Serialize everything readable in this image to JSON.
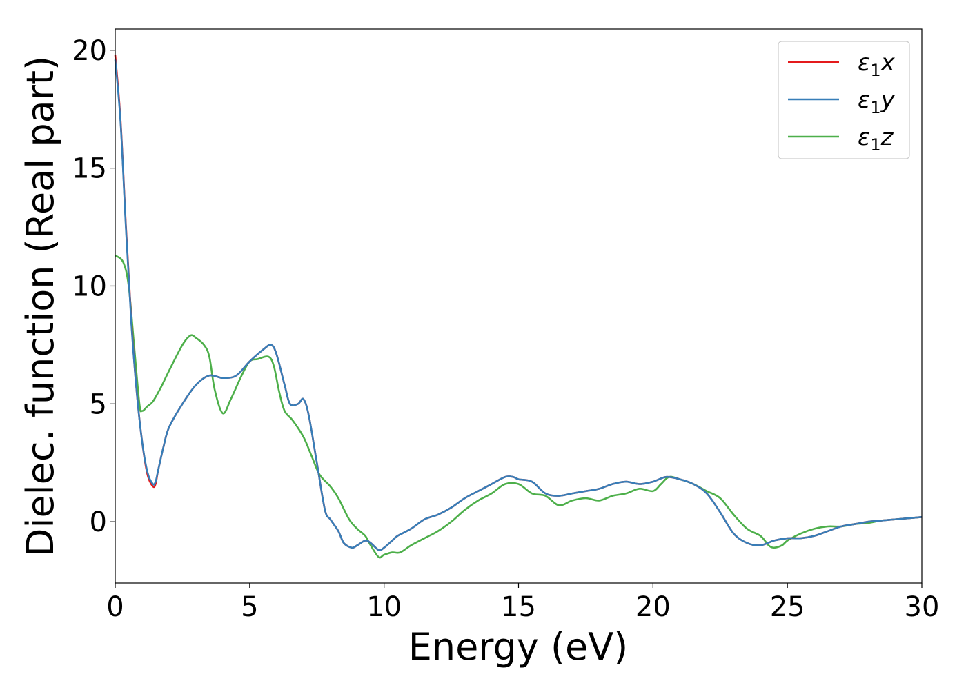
{
  "chart_data": {
    "type": "line",
    "xlabel": "Energy (eV)",
    "ylabel": "Dielec. function (Real part)",
    "xlim": [
      0,
      30
    ],
    "ylim": [
      -2.6,
      20.9
    ],
    "xticks": [
      0,
      5,
      10,
      15,
      20,
      25,
      30
    ],
    "yticks": [
      0,
      5,
      10,
      15,
      20
    ],
    "grid": false,
    "legend_position": "top-right",
    "series": [
      {
        "name": "ε1x",
        "legend_main": "ε",
        "legend_sub": "1",
        "legend_var": "x",
        "color": "#e41a1c",
        "x": [
          0,
          0.2,
          0.4,
          0.6,
          0.8,
          1.0,
          1.2,
          1.4,
          1.5,
          1.6,
          1.8,
          2.0,
          2.5,
          3.0,
          3.5,
          4.0,
          4.5,
          5.0,
          5.5,
          5.8,
          6.0,
          6.3,
          6.5,
          6.8,
          7.0,
          7.2,
          7.5,
          7.8,
          8.0,
          8.3,
          8.5,
          8.8,
          9.0,
          9.3,
          9.5,
          9.8,
          10.0,
          10.3,
          10.5,
          11.0,
          11.5,
          12.0,
          12.5,
          13.0,
          13.5,
          14.0,
          14.5,
          14.8,
          15.0,
          15.5,
          16.0,
          16.5,
          17.0,
          17.5,
          18.0,
          18.5,
          19.0,
          19.5,
          20.0,
          20.5,
          21.0,
          21.5,
          22.0,
          22.5,
          23.0,
          23.5,
          24.0,
          24.5,
          25.0,
          25.5,
          26.0,
          26.5,
          27.0,
          27.5,
          28.0,
          28.5,
          29.0,
          29.5,
          30.0
        ],
        "y": [
          19.8,
          17.0,
          12.5,
          8.5,
          5.5,
          3.4,
          2.0,
          1.5,
          1.6,
          2.2,
          3.2,
          4.0,
          5.0,
          5.8,
          6.2,
          6.1,
          6.2,
          6.8,
          7.3,
          7.5,
          7.1,
          5.8,
          5.0,
          5.0,
          5.2,
          4.5,
          2.5,
          0.5,
          0.1,
          -0.4,
          -0.9,
          -1.1,
          -1.0,
          -0.8,
          -0.9,
          -1.2,
          -1.1,
          -0.8,
          -0.6,
          -0.3,
          0.1,
          0.3,
          0.6,
          1.0,
          1.3,
          1.6,
          1.9,
          1.9,
          1.8,
          1.7,
          1.2,
          1.1,
          1.2,
          1.3,
          1.4,
          1.6,
          1.7,
          1.6,
          1.7,
          1.9,
          1.8,
          1.6,
          1.2,
          0.4,
          -0.5,
          -0.9,
          -1.0,
          -0.8,
          -0.7,
          -0.7,
          -0.6,
          -0.4,
          -0.2,
          -0.1,
          0.0,
          0.05,
          0.1,
          0.15,
          0.2
        ]
      },
      {
        "name": "ε1y",
        "legend_main": "ε",
        "legend_sub": "1",
        "legend_var": "y",
        "color": "#377eb8",
        "x": [
          0,
          0.2,
          0.4,
          0.6,
          0.8,
          1.0,
          1.2,
          1.4,
          1.5,
          1.6,
          1.8,
          2.0,
          2.5,
          3.0,
          3.5,
          4.0,
          4.5,
          5.0,
          5.5,
          5.8,
          6.0,
          6.3,
          6.5,
          6.8,
          7.0,
          7.2,
          7.5,
          7.8,
          8.0,
          8.3,
          8.5,
          8.8,
          9.0,
          9.3,
          9.5,
          9.8,
          10.0,
          10.3,
          10.5,
          11.0,
          11.5,
          12.0,
          12.5,
          13.0,
          13.5,
          14.0,
          14.5,
          14.8,
          15.0,
          15.5,
          16.0,
          16.5,
          17.0,
          17.5,
          18.0,
          18.5,
          19.0,
          19.5,
          20.0,
          20.5,
          21.0,
          21.5,
          22.0,
          22.5,
          23.0,
          23.5,
          24.0,
          24.5,
          25.0,
          25.5,
          26.0,
          26.5,
          27.0,
          27.5,
          28.0,
          28.5,
          29.0,
          29.5,
          30.0
        ],
        "y": [
          19.6,
          16.9,
          12.4,
          8.4,
          5.5,
          3.4,
          2.1,
          1.6,
          1.7,
          2.2,
          3.2,
          4.0,
          5.0,
          5.8,
          6.2,
          6.1,
          6.2,
          6.8,
          7.3,
          7.5,
          7.1,
          5.8,
          5.0,
          5.0,
          5.2,
          4.5,
          2.5,
          0.5,
          0.1,
          -0.4,
          -0.9,
          -1.1,
          -1.0,
          -0.8,
          -0.9,
          -1.2,
          -1.1,
          -0.8,
          -0.6,
          -0.3,
          0.1,
          0.3,
          0.6,
          1.0,
          1.3,
          1.6,
          1.9,
          1.9,
          1.8,
          1.7,
          1.2,
          1.1,
          1.2,
          1.3,
          1.4,
          1.6,
          1.7,
          1.6,
          1.7,
          1.9,
          1.8,
          1.6,
          1.2,
          0.4,
          -0.5,
          -0.9,
          -1.0,
          -0.8,
          -0.7,
          -0.7,
          -0.6,
          -0.4,
          -0.2,
          -0.1,
          0.0,
          0.05,
          0.1,
          0.15,
          0.2
        ]
      },
      {
        "name": "ε1z",
        "legend_main": "ε",
        "legend_sub": "1",
        "legend_var": "z",
        "color": "#4daf4a",
        "x": [
          0,
          0.3,
          0.5,
          0.7,
          0.9,
          1.0,
          1.2,
          1.4,
          1.7,
          2.0,
          2.5,
          2.8,
          3.0,
          3.3,
          3.5,
          3.7,
          4.0,
          4.3,
          4.7,
          5.0,
          5.3,
          5.7,
          5.9,
          6.1,
          6.3,
          6.6,
          7.0,
          7.3,
          7.6,
          8.0,
          8.3,
          8.7,
          9.0,
          9.3,
          9.5,
          9.8,
          10.0,
          10.3,
          10.6,
          11.0,
          11.5,
          12.0,
          12.5,
          13.0,
          13.5,
          14.0,
          14.5,
          15.0,
          15.5,
          16.0,
          16.5,
          17.0,
          17.5,
          18.0,
          18.5,
          19.0,
          19.5,
          20.0,
          20.3,
          20.6,
          21.0,
          21.5,
          22.0,
          22.5,
          23.0,
          23.5,
          24.0,
          24.3,
          24.5,
          24.8,
          25.0,
          25.5,
          26.0,
          26.5,
          27.0,
          27.5,
          28.0,
          28.5,
          29.0,
          29.5,
          30.0
        ],
        "y": [
          11.3,
          11.0,
          10.0,
          7.5,
          5.0,
          4.7,
          4.9,
          5.1,
          5.7,
          6.4,
          7.5,
          7.9,
          7.8,
          7.5,
          7.0,
          5.6,
          4.6,
          5.2,
          6.2,
          6.8,
          6.9,
          7.0,
          6.6,
          5.5,
          4.7,
          4.3,
          3.6,
          2.8,
          2.0,
          1.5,
          1.0,
          0.1,
          -0.3,
          -0.6,
          -1.0,
          -1.5,
          -1.4,
          -1.3,
          -1.3,
          -1.0,
          -0.7,
          -0.4,
          0.0,
          0.5,
          0.9,
          1.2,
          1.6,
          1.6,
          1.2,
          1.1,
          0.7,
          0.9,
          1.0,
          0.9,
          1.1,
          1.2,
          1.4,
          1.3,
          1.6,
          1.9,
          1.8,
          1.6,
          1.3,
          1.0,
          0.3,
          -0.3,
          -0.6,
          -1.0,
          -1.1,
          -1.0,
          -0.8,
          -0.5,
          -0.3,
          -0.2,
          -0.2,
          -0.1,
          -0.05,
          0.05,
          0.1,
          0.15,
          0.2
        ]
      }
    ]
  }
}
